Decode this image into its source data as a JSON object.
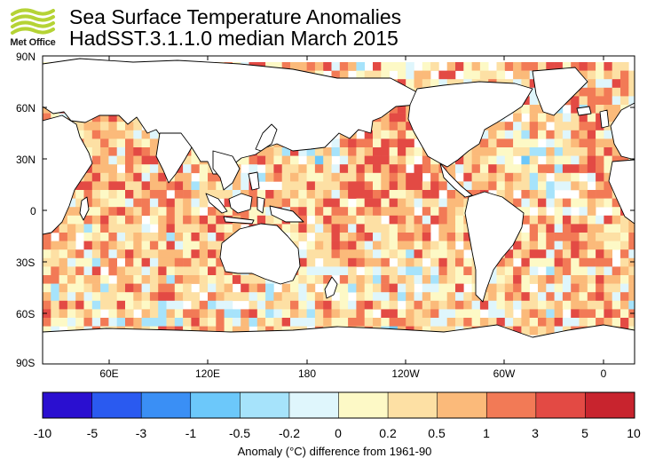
{
  "header": {
    "logo_text": "Met Office",
    "title_line1": "Sea Surface Temperature Anomalies",
    "title_line2": "HadSST.3.1.1.0 median March 2015"
  },
  "map": {
    "lat_labels": [
      "90N",
      "60N",
      "30N",
      "0",
      "30S",
      "60S",
      "90S"
    ],
    "lon_labels": [
      "60E",
      "120E",
      "180",
      "120W",
      "60W",
      "0"
    ],
    "land_color": "#ffffff",
    "missing_color": "#ffffff"
  },
  "colorbar": {
    "tick_labels": [
      "-10",
      "-5",
      "-3",
      "-1",
      "-0.5",
      "-0.2",
      "0",
      "0.2",
      "0.5",
      "1",
      "3",
      "5",
      "10"
    ],
    "colors": [
      "#2a0fd0",
      "#2a5af0",
      "#3a8ff5",
      "#6cc8fa",
      "#a6e3fb",
      "#dff6fc",
      "#fdf9c6",
      "#fde0a4",
      "#fbba7a",
      "#f27a56",
      "#e34a44",
      "#c8242e",
      "#9a0b1f"
    ],
    "caption": "Anomaly (°C) difference from 1961-90"
  }
}
